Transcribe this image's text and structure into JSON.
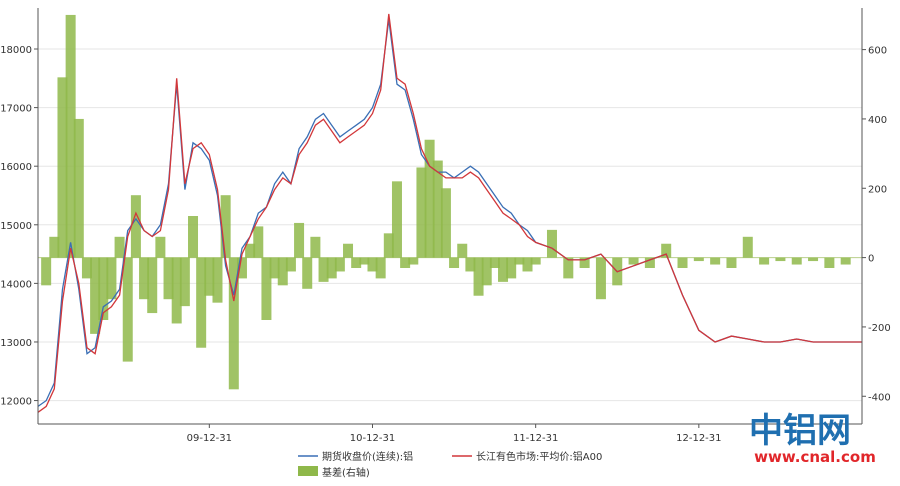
{
  "chart_data": {
    "type": "line",
    "title": "",
    "left_axis": {
      "ylim": [
        11600,
        18700
      ],
      "ticks": [
        12000,
        13000,
        14000,
        15000,
        16000,
        17000,
        18000
      ]
    },
    "right_axis": {
      "ylim": [
        -480,
        720
      ],
      "ticks": [
        -400,
        -200,
        0,
        200,
        400,
        600
      ]
    },
    "x_axis": {
      "xlim": [
        2008.95,
        2014.0
      ],
      "ticks": [
        {
          "pos": 2010.0,
          "label": "09-12-31"
        },
        {
          "pos": 2011.0,
          "label": "10-12-31"
        },
        {
          "pos": 2012.0,
          "label": "11-12-31"
        },
        {
          "pos": 2013.0,
          "label": "12-12-31"
        }
      ]
    },
    "grid": true,
    "legend_position": "bottom",
    "series": [
      {
        "name": "期货收盘价(连续):铝",
        "color": "#3a6fb5",
        "axis": "left",
        "x": [
          2008.95,
          2009.0,
          2009.05,
          2009.1,
          2009.15,
          2009.2,
          2009.25,
          2009.3,
          2009.35,
          2009.4,
          2009.45,
          2009.5,
          2009.55,
          2009.6,
          2009.65,
          2009.7,
          2009.75,
          2009.8,
          2009.85,
          2009.9,
          2009.95,
          2010.0,
          2010.05,
          2010.1,
          2010.15,
          2010.2,
          2010.25,
          2010.3,
          2010.35,
          2010.4,
          2010.45,
          2010.5,
          2010.55,
          2010.6,
          2010.65,
          2010.7,
          2010.75,
          2010.8,
          2010.85,
          2010.9,
          2010.95,
          2011.0,
          2011.05,
          2011.1,
          2011.15,
          2011.2,
          2011.25,
          2011.3,
          2011.35,
          2011.4,
          2011.45,
          2011.5,
          2011.55,
          2011.6,
          2011.65,
          2011.7,
          2011.75,
          2011.8,
          2011.85,
          2011.9,
          2011.95,
          2012.0,
          2012.1,
          2012.2,
          2012.3,
          2012.4,
          2012.5,
          2012.6,
          2012.7,
          2012.8,
          2012.9,
          2013.0,
          2013.1,
          2013.2,
          2013.3,
          2013.4,
          2013.5,
          2013.6,
          2013.7,
          2013.8,
          2013.9,
          2014.0
        ],
        "values": [
          11900,
          12000,
          12300,
          13900,
          14700,
          13900,
          12800,
          12900,
          13600,
          13700,
          13900,
          14900,
          15100,
          14900,
          14800,
          15000,
          15700,
          17400,
          15600,
          16400,
          16300,
          16100,
          15500,
          14300,
          13800,
          14600,
          14800,
          15200,
          15300,
          15700,
          15900,
          15700,
          16300,
          16500,
          16800,
          16900,
          16700,
          16500,
          16600,
          16700,
          16800,
          17000,
          17400,
          18500,
          17400,
          17300,
          16800,
          16200,
          16000,
          15900,
          15900,
          15800,
          15900,
          16000,
          15900,
          15700,
          15500,
          15300,
          15200,
          15000,
          14900,
          14700,
          14600,
          14400,
          14400,
          14500,
          14200,
          14300,
          14400,
          14500,
          13800,
          13200,
          13000,
          13100,
          13050,
          13000,
          13000,
          13050,
          13000,
          13000,
          13000,
          13000
        ]
      },
      {
        "name": "长江有色市场:平均价:铝A00",
        "color": "#d2373a",
        "axis": "left",
        "x": [
          2008.95,
          2009.0,
          2009.05,
          2009.1,
          2009.15,
          2009.2,
          2009.25,
          2009.3,
          2009.35,
          2009.4,
          2009.45,
          2009.5,
          2009.55,
          2009.6,
          2009.65,
          2009.7,
          2009.75,
          2009.8,
          2009.85,
          2009.9,
          2009.95,
          2010.0,
          2010.05,
          2010.1,
          2010.15,
          2010.2,
          2010.25,
          2010.3,
          2010.35,
          2010.4,
          2010.45,
          2010.5,
          2010.55,
          2010.6,
          2010.65,
          2010.7,
          2010.75,
          2010.8,
          2010.85,
          2010.9,
          2010.95,
          2011.0,
          2011.05,
          2011.1,
          2011.15,
          2011.2,
          2011.25,
          2011.3,
          2011.35,
          2011.4,
          2011.45,
          2011.5,
          2011.55,
          2011.6,
          2011.65,
          2011.7,
          2011.75,
          2011.8,
          2011.85,
          2011.9,
          2011.95,
          2012.0,
          2012.1,
          2012.2,
          2012.3,
          2012.4,
          2012.5,
          2012.6,
          2012.7,
          2012.8,
          2012.9,
          2013.0,
          2013.1,
          2013.2,
          2013.3,
          2013.4,
          2013.5,
          2013.6,
          2013.7,
          2013.8,
          2013.9,
          2014.0
        ],
        "values": [
          11800,
          11900,
          12200,
          13700,
          14600,
          14000,
          12900,
          12800,
          13500,
          13600,
          13800,
          14800,
          15200,
          14900,
          14800,
          14900,
          15600,
          17500,
          15700,
          16300,
          16400,
          16200,
          15600,
          14400,
          13700,
          14500,
          14800,
          15100,
          15300,
          15600,
          15800,
          15700,
          16200,
          16400,
          16700,
          16800,
          16600,
          16400,
          16500,
          16600,
          16700,
          16900,
          17300,
          18600,
          17500,
          17400,
          16900,
          16300,
          16000,
          15900,
          15800,
          15800,
          15800,
          15900,
          15800,
          15600,
          15400,
          15200,
          15100,
          15000,
          14800,
          14700,
          14600,
          14400,
          14400,
          14500,
          14200,
          14300,
          14400,
          14500,
          13800,
          13200,
          13000,
          13100,
          13050,
          13000,
          13000,
          13050,
          13000,
          13000,
          13000,
          13000
        ]
      },
      {
        "name": "基差(右轴)",
        "color": "#8fb84a",
        "axis": "right",
        "type": "bar",
        "x": [
          2009.0,
          2009.05,
          2009.1,
          2009.15,
          2009.2,
          2009.25,
          2009.3,
          2009.35,
          2009.4,
          2009.45,
          2009.5,
          2009.55,
          2009.6,
          2009.65,
          2009.7,
          2009.75,
          2009.8,
          2009.85,
          2009.9,
          2009.95,
          2010.0,
          2010.05,
          2010.1,
          2010.15,
          2010.2,
          2010.25,
          2010.3,
          2010.35,
          2010.4,
          2010.45,
          2010.5,
          2010.55,
          2010.6,
          2010.65,
          2010.7,
          2010.75,
          2010.8,
          2010.85,
          2010.9,
          2010.95,
          2011.0,
          2011.05,
          2011.1,
          2011.15,
          2011.2,
          2011.25,
          2011.3,
          2011.35,
          2011.4,
          2011.45,
          2011.5,
          2011.55,
          2011.6,
          2011.65,
          2011.7,
          2011.75,
          2011.8,
          2011.85,
          2011.9,
          2011.95,
          2012.0,
          2012.1,
          2012.2,
          2012.3,
          2012.4,
          2012.5,
          2012.6,
          2012.7,
          2012.8,
          2012.9,
          2013.0,
          2013.1,
          2013.2,
          2013.3,
          2013.4,
          2013.5,
          2013.6,
          2013.7,
          2013.8,
          2013.9
        ],
        "values": [
          -80,
          60,
          520,
          700,
          400,
          -60,
          -220,
          -180,
          -120,
          60,
          -300,
          180,
          -120,
          -160,
          60,
          -120,
          -190,
          -140,
          120,
          -260,
          -110,
          -130,
          180,
          -380,
          -60,
          40,
          90,
          -180,
          -60,
          -80,
          -40,
          100,
          -90,
          60,
          -70,
          -60,
          -40,
          40,
          -30,
          -20,
          -40,
          -60,
          70,
          220,
          -30,
          -20,
          260,
          340,
          280,
          200,
          -30,
          40,
          -40,
          -110,
          -80,
          -30,
          -70,
          -60,
          -20,
          -40,
          -20,
          80,
          -60,
          -30,
          -120,
          -80,
          -20,
          -30,
          40,
          -30,
          -10,
          -20,
          -30,
          60,
          -20,
          -10,
          -20,
          -10,
          -30,
          -20
        ]
      }
    ]
  },
  "watermark": {
    "brand": "中铝网",
    "url": "www.cnal.com"
  }
}
